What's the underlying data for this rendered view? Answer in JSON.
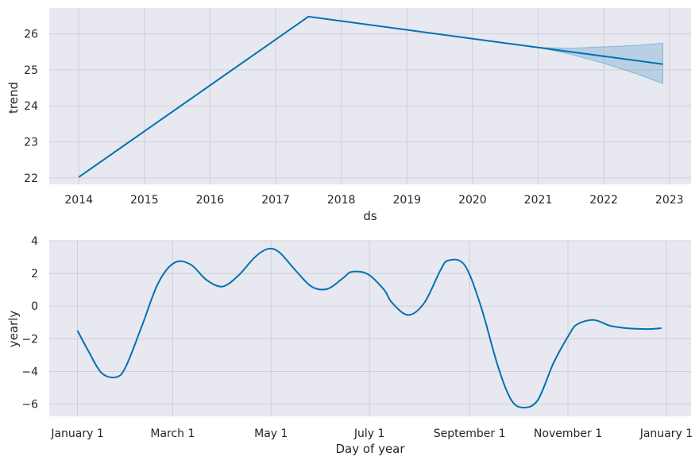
{
  "chart_data": [
    {
      "type": "line",
      "xlabel": "ds",
      "ylabel": "trend",
      "x_ticks": [
        "2014",
        "2015",
        "2016",
        "2017",
        "2018",
        "2019",
        "2020",
        "2021",
        "2022",
        "2023"
      ],
      "y_ticks": [
        "22",
        "23",
        "24",
        "25",
        "26"
      ],
      "xlim": [
        2013.55,
        2023.33
      ],
      "ylim": [
        21.82,
        26.72
      ],
      "grid": true,
      "series": [
        {
          "x": [
            2014.0,
            2017.5,
            2021.0,
            2022.9
          ],
          "y": [
            22.02,
            26.48,
            25.62,
            25.16
          ]
        }
      ],
      "uncertainty": {
        "x": [
          2021.0,
          2021.5,
          2022.0,
          2022.5,
          2022.9
        ],
        "upper": [
          25.62,
          25.6,
          25.64,
          25.68,
          25.74
        ],
        "lower": [
          25.62,
          25.43,
          25.18,
          24.89,
          24.62
        ]
      },
      "colors": {
        "line": "#0072b2",
        "band": "#0072b2",
        "background": "#e8e8f0",
        "grid": "#cfcfd6"
      }
    },
    {
      "type": "line",
      "xlabel": "Day of year",
      "ylabel": "yearly",
      "x_ticks": [
        "January 1",
        "March 1",
        "May 1",
        "July 1",
        "September 1",
        "November 1",
        "January 1"
      ],
      "x_tick_days": [
        0,
        59,
        120,
        181,
        243,
        304,
        365
      ],
      "y_ticks": [
        "4",
        "2",
        "0",
        "−2",
        "−4",
        "−6"
      ],
      "y_tick_values": [
        4,
        2,
        0,
        -2,
        -4,
        -6
      ],
      "xlim": [
        -17.5,
        380.3
      ],
      "ylim": [
        -6.75,
        4.0
      ],
      "grid": true,
      "series": [
        {
          "x": [
            0,
            7,
            15,
            24,
            30,
            40,
            50,
            60,
            70,
            80,
            90,
            100,
            110,
            118,
            125,
            135,
            145,
            155,
            165,
            170,
            180,
            190,
            195,
            205,
            215,
            225,
            230,
            240,
            250,
            260,
            268,
            275,
            285,
            295,
            305,
            310,
            320,
            330,
            340,
            350,
            356,
            362
          ],
          "y": [
            -1.5,
            -2.8,
            -4.1,
            -4.35,
            -3.7,
            -1.2,
            1.4,
            2.65,
            2.55,
            1.6,
            1.2,
            1.9,
            3.0,
            3.5,
            3.3,
            2.2,
            1.2,
            1.05,
            1.75,
            2.1,
            1.95,
            1.0,
            0.2,
            -0.55,
            0.2,
            2.2,
            2.8,
            2.5,
            0.0,
            -3.5,
            -5.6,
            -6.2,
            -5.8,
            -3.5,
            -1.7,
            -1.1,
            -0.85,
            -1.2,
            -1.35,
            -1.4,
            -1.4,
            -1.35
          ]
        }
      ],
      "colors": {
        "line": "#0072b2",
        "background": "#e8e8f0",
        "grid": "#cfcfd6"
      }
    }
  ]
}
